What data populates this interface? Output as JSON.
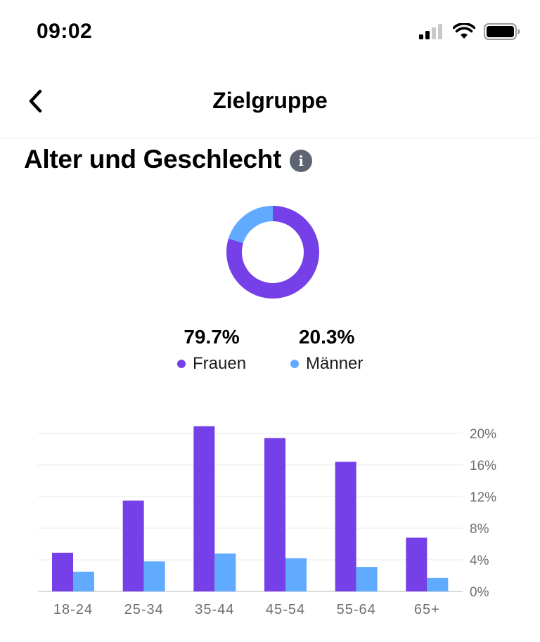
{
  "status": {
    "time": "09:02"
  },
  "nav": {
    "title": "Zielgruppe"
  },
  "section": {
    "title": "Alter und Geschlecht",
    "info_icon": "info-icon"
  },
  "gender": {
    "women": {
      "value": "79.7%",
      "label": "Frauen",
      "color": "#7540e8",
      "fraction": 0.797
    },
    "men": {
      "value": "20.3%",
      "label": "Männer",
      "color": "#60aaff",
      "fraction": 0.203
    }
  },
  "chart_data": [
    {
      "type": "pie",
      "categories": [
        "Frauen",
        "Männer"
      ],
      "values": [
        79.7,
        20.3
      ],
      "colors": [
        "#7540e8",
        "#60aaff"
      ]
    },
    {
      "type": "bar",
      "categories": [
        "18-24",
        "25-34",
        "35-44",
        "45-54",
        "55-64",
        "65+"
      ],
      "series": [
        {
          "name": "Frauen",
          "values": [
            4.9,
            11.5,
            20.9,
            19.4,
            16.4,
            6.8
          ],
          "color": "#7540e8"
        },
        {
          "name": "Männer",
          "values": [
            2.5,
            3.8,
            4.8,
            4.2,
            3.1,
            1.7
          ],
          "color": "#60aaff"
        }
      ],
      "y_ticks": [
        "0%",
        "4%",
        "8%",
        "12%",
        "16%",
        "20%"
      ],
      "ylim": [
        0,
        20
      ],
      "grid": true,
      "y_axis_position": "right"
    }
  ]
}
